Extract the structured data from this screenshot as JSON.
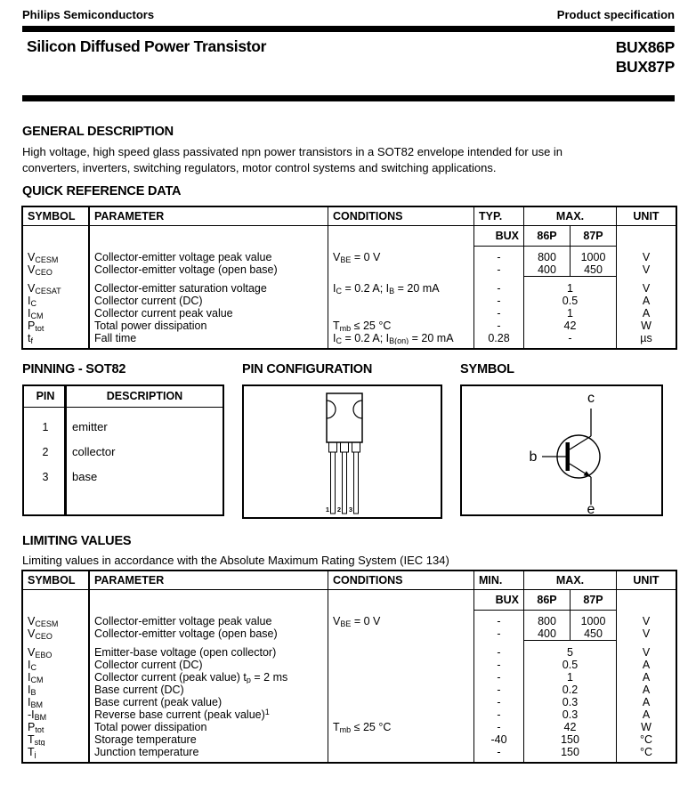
{
  "header": {
    "brand": "Philips Semiconductors",
    "spec": "Product specification",
    "title": "Silicon Diffused Power Transistor",
    "part1": "BUX86P",
    "part2": "BUX87P"
  },
  "general": {
    "heading": "GENERAL DESCRIPTION",
    "line1": "High voltage, high speed glass passivated npn power transistors in a SOT82 envelope intended for use in",
    "line2": "converters, inverters, switching regulators, motor control systems and switching applications."
  },
  "quick_ref": {
    "heading": "QUICK REFERENCE DATA",
    "cols": {
      "symbol": "SYMBOL",
      "parameter": "PARAMETER",
      "conditions": "CONDITIONS",
      "typ": "TYP.",
      "max": "MAX.",
      "unit": "UNIT"
    },
    "sub": {
      "bux": "BUX",
      "p86": "86P",
      "p87": "87P"
    },
    "groups": [
      {
        "split": true,
        "rows": [
          {
            "sym": "V~CESM~",
            "par": "Collector-emitter voltage peak value",
            "cond": "V~BE~ = 0 V",
            "typ": "-",
            "v86": "800",
            "v87": "1000",
            "unit": "V"
          },
          {
            "sym": "V~CEO~",
            "par": "Collector-emitter voltage (open base)",
            "cond": "",
            "typ": "-",
            "v86": "400",
            "v87": "450",
            "unit": "V"
          }
        ]
      },
      {
        "split": false,
        "rows": [
          {
            "sym": "V~CESAT~",
            "par": "Collector-emitter saturation voltage",
            "cond": "I~C~ = 0.2 A; I~B~ = 20 mA",
            "typ": "-",
            "max": "1",
            "unit": "V"
          },
          {
            "sym": "I~C~",
            "par": "Collector current (DC)",
            "cond": "",
            "typ": "-",
            "max": "0.5",
            "unit": "A"
          },
          {
            "sym": "I~CM~",
            "par": "Collector current peak value",
            "cond": "",
            "typ": "-",
            "max": "1",
            "unit": "A"
          },
          {
            "sym": "P~tot~",
            "par": "Total power dissipation",
            "cond": "T~mb~ ≤ 25 °C",
            "typ": "-",
            "max": "42",
            "unit": "W"
          },
          {
            "sym": "t~f~",
            "par": "Fall time",
            "cond": "I~C~ = 0.2 A; I~B(on)~ = 20 mA",
            "typ": "0.28",
            "max": "-",
            "unit": "µs"
          }
        ]
      }
    ]
  },
  "pinning": {
    "heading": "PINNING - SOT82",
    "col_pin": "PIN",
    "col_desc": "DESCRIPTION",
    "rows": [
      {
        "pin": "1",
        "desc": "emitter"
      },
      {
        "pin": "2",
        "desc": "collector"
      },
      {
        "pin": "3",
        "desc": "base"
      }
    ]
  },
  "pin_config": {
    "heading": "PIN CONFIGURATION",
    "pins": [
      "1",
      "2",
      "3"
    ]
  },
  "symbol_box": {
    "heading": "SYMBOL",
    "c": "c",
    "b": "b",
    "e": "e"
  },
  "limiting": {
    "heading": "LIMITING VALUES",
    "subtitle": "Limiting values in accordance with the Absolute Maximum Rating System (IEC 134)",
    "cols": {
      "symbol": "SYMBOL",
      "parameter": "PARAMETER",
      "conditions": "CONDITIONS",
      "typ": "MIN.",
      "max": "MAX.",
      "unit": "UNIT"
    },
    "sub": {
      "bux": "BUX",
      "p86": "86P",
      "p87": "87P"
    },
    "groups": [
      {
        "split": true,
        "rows": [
          {
            "sym": "V~CESM~",
            "par": "Collector-emitter voltage peak value",
            "cond": "V~BE~ = 0 V",
            "typ": "-",
            "v86": "800",
            "v87": "1000",
            "unit": "V"
          },
          {
            "sym": "V~CEO~",
            "par": "Collector-emitter voltage (open base)",
            "cond": "",
            "typ": "-",
            "v86": "400",
            "v87": "450",
            "unit": "V"
          }
        ]
      },
      {
        "split": false,
        "rows": [
          {
            "sym": "V~EBO~",
            "par": "Emitter-base voltage (open collector)",
            "cond": "",
            "typ": "-",
            "max": "5",
            "unit": "V"
          },
          {
            "sym": "I~C~",
            "par": "Collector current (DC)",
            "cond": "",
            "typ": "-",
            "max": "0.5",
            "unit": "A"
          },
          {
            "sym": "I~CM~",
            "par": "Collector current (peak value) t~p~ = 2 ms",
            "cond": "",
            "typ": "-",
            "max": "1",
            "unit": "A"
          },
          {
            "sym": "I~B~",
            "par": "Base current (DC)",
            "cond": "",
            "typ": "-",
            "max": "0.2",
            "unit": "A"
          },
          {
            "sym": "I~BM~",
            "par": "Base current (peak value)",
            "cond": "",
            "typ": "-",
            "max": "0.3",
            "unit": "A"
          },
          {
            "sym": "-I~BM~",
            "par": "Reverse base current (peak value)^1^",
            "cond": "",
            "typ": "-",
            "max": "0.3",
            "unit": "A"
          },
          {
            "sym": "P~tot~",
            "par": "Total power dissipation",
            "cond": "T~mb~ ≤ 25 °C",
            "typ": "-",
            "max": "42",
            "unit": "W"
          },
          {
            "sym": "T~stg~",
            "par": "Storage temperature",
            "cond": "",
            "typ": "-40",
            "max": "150",
            "unit": "°C"
          },
          {
            "sym": "T~j~",
            "par": "Junction temperature",
            "cond": "",
            "typ": "-",
            "max": "150",
            "unit": "°C"
          }
        ]
      }
    ]
  }
}
